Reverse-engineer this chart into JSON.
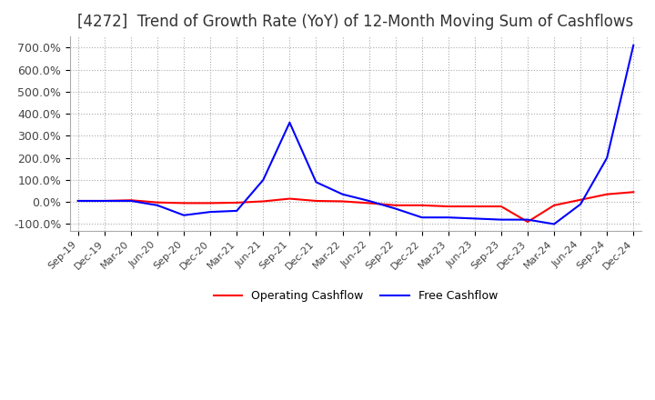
{
  "title": "[4272]  Trend of Growth Rate (YoY) of 12-Month Moving Sum of Cashflows",
  "title_fontsize": 12,
  "title_color": "#333333",
  "title_bold": false,
  "background_color": "#ffffff",
  "grid_color": "#aaaaaa",
  "operating_color": "#ff0000",
  "free_color": "#0000ff",
  "ylim": [
    -130,
    750
  ],
  "yticks": [
    -100,
    0,
    100,
    200,
    300,
    400,
    500,
    600,
    700
  ],
  "ytick_labels": [
    "-100.0%",
    "0.0%",
    "100.0%",
    "200.0%",
    "300.0%",
    "400.0%",
    "500.0%",
    "600.0%",
    "700.0%"
  ],
  "x_labels": [
    "Sep-19",
    "Dec-19",
    "Mar-20",
    "Jun-20",
    "Sep-20",
    "Dec-20",
    "Mar-21",
    "Jun-21",
    "Sep-21",
    "Dec-21",
    "Mar-22",
    "Jun-22",
    "Sep-22",
    "Dec-22",
    "Mar-23",
    "Jun-23",
    "Sep-23",
    "Dec-23",
    "Mar-24",
    "Jun-24",
    "Sep-24",
    "Dec-24"
  ],
  "operating_cashflow": [
    5,
    5,
    8,
    -2,
    -5,
    -5,
    -3,
    3,
    15,
    5,
    3,
    -5,
    -15,
    -15,
    -20,
    -20,
    -20,
    -90,
    -15,
    10,
    35,
    45
  ],
  "free_cashflow": [
    5,
    5,
    5,
    -15,
    -60,
    -45,
    -40,
    100,
    360,
    90,
    35,
    5,
    -30,
    -70,
    -70,
    -75,
    -80,
    -80,
    -100,
    -10,
    200,
    710
  ]
}
